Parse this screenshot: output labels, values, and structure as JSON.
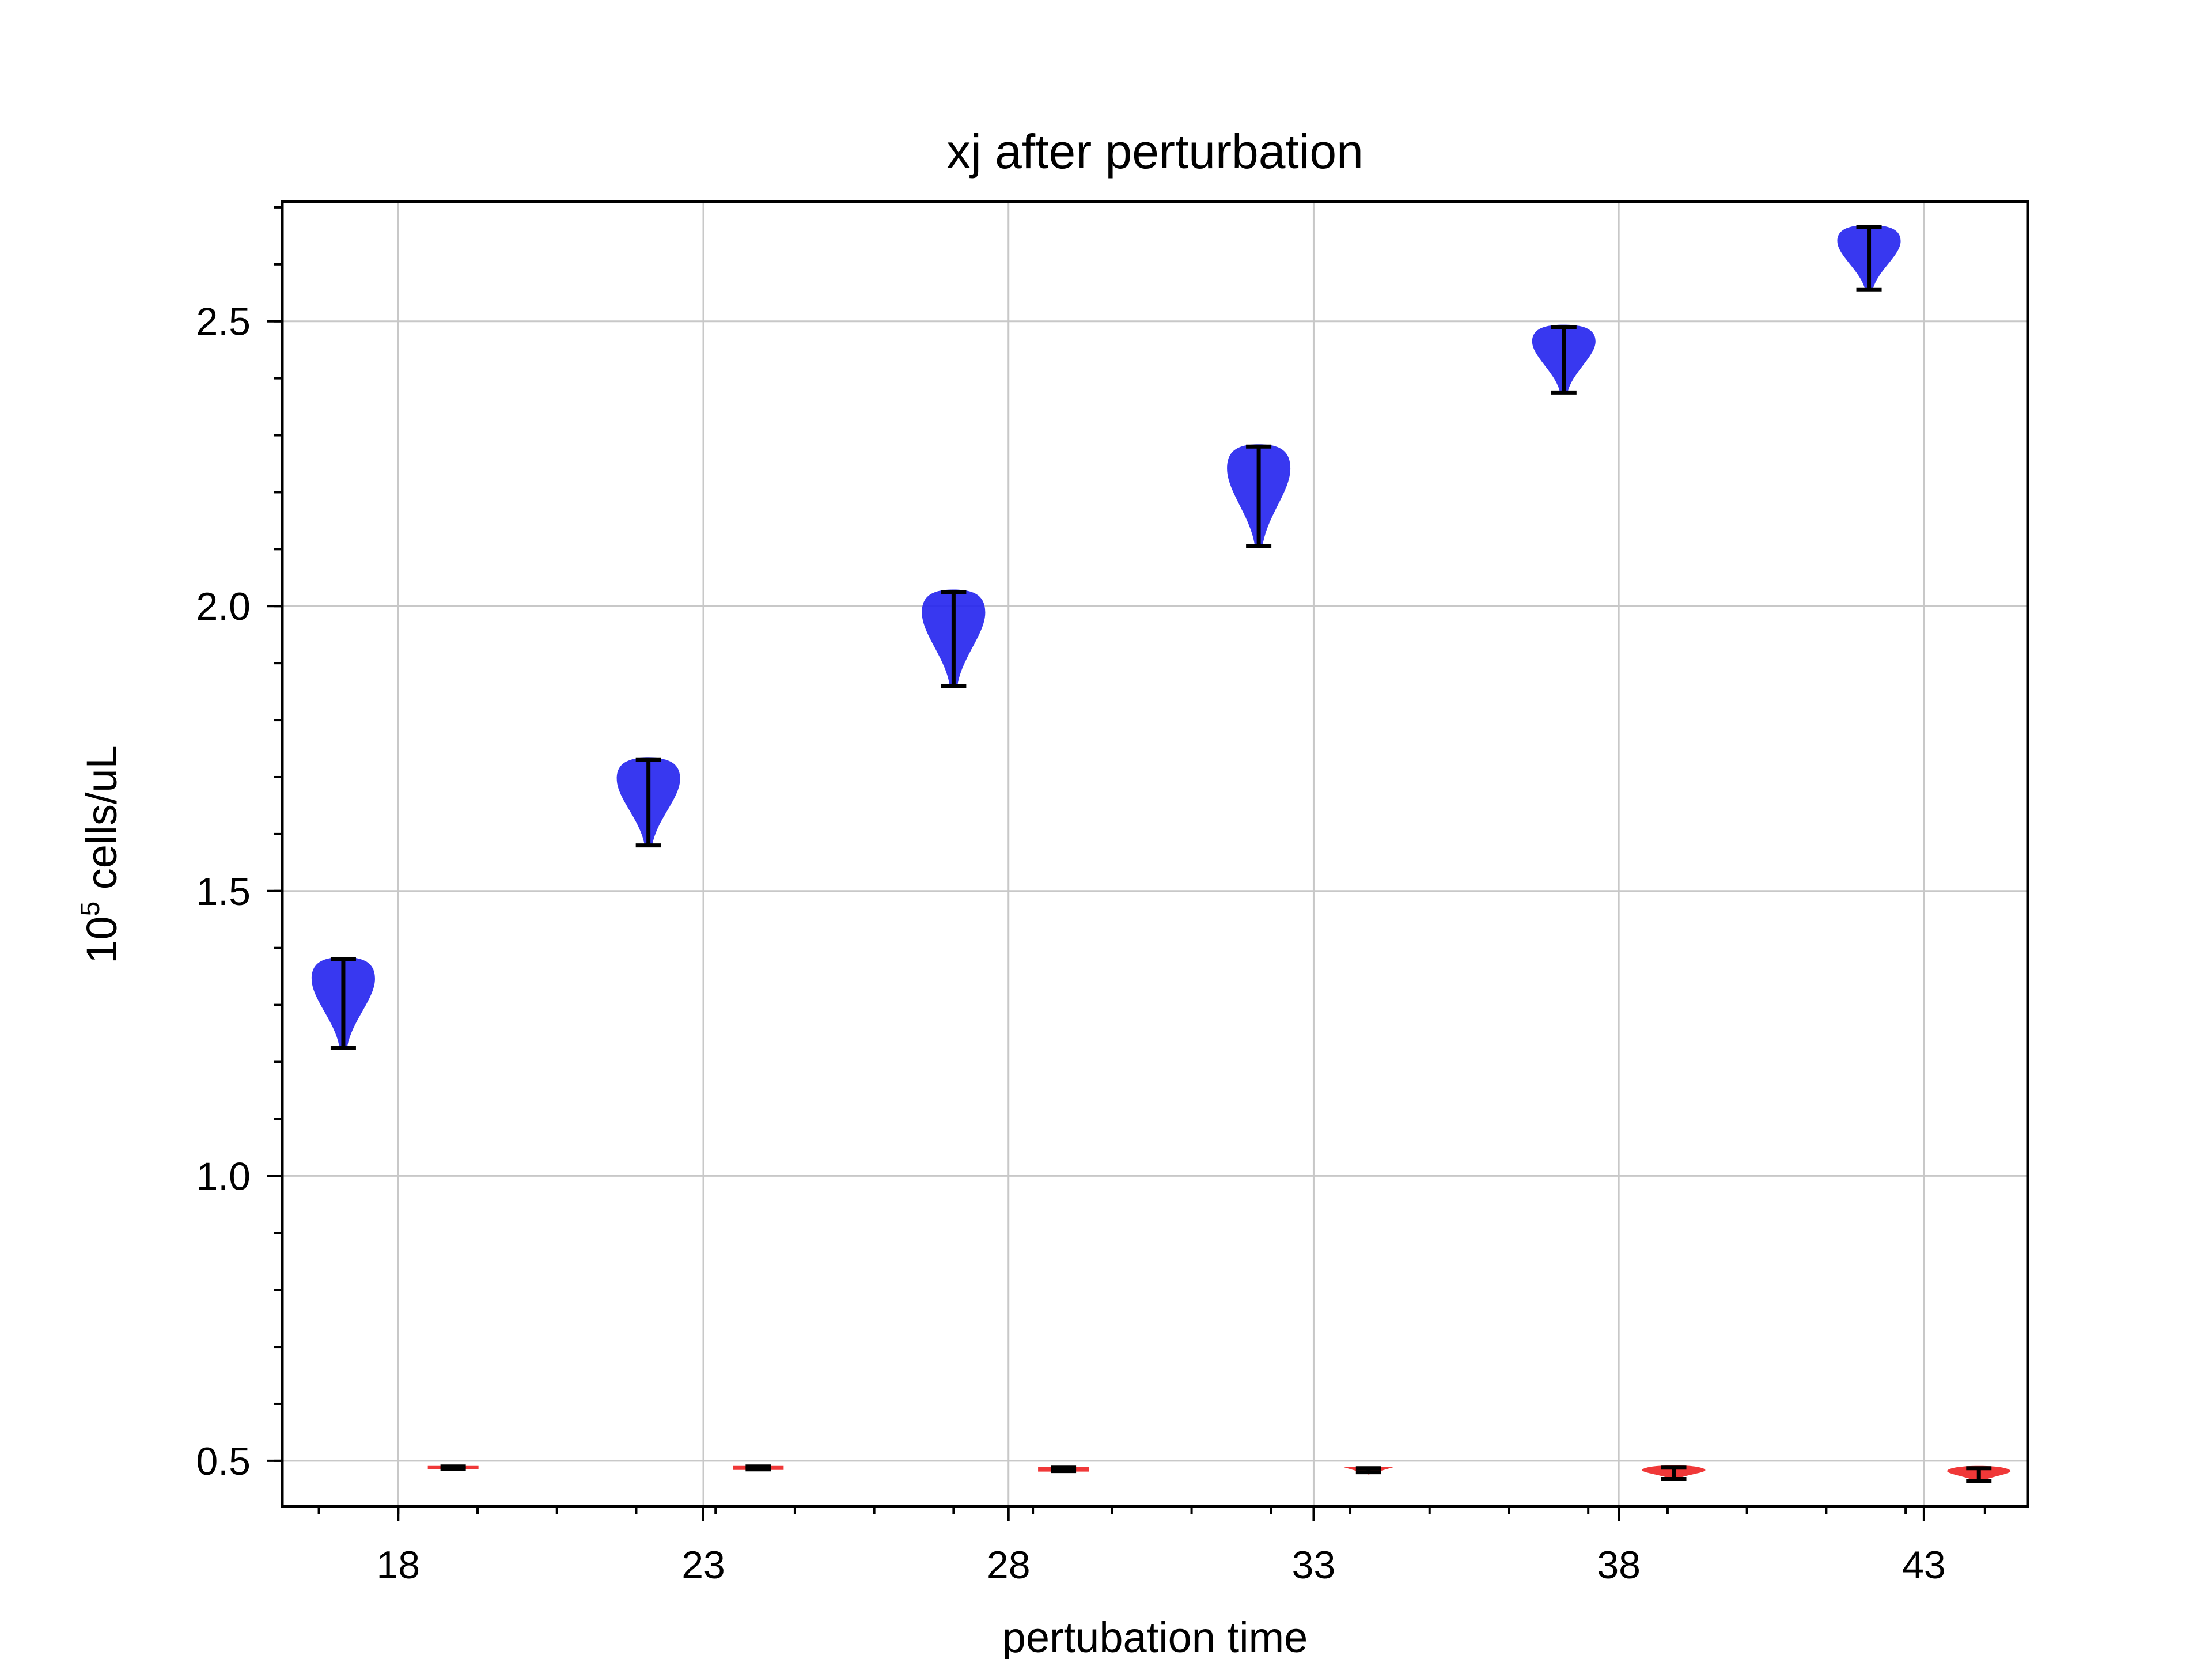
{
  "chart_data": {
    "type": "violin",
    "title": "xj after perturbation",
    "xlabel": "pertubation time",
    "ylabel_base": "10",
    "ylabel_exp": "5",
    "ylabel_rest": " cells/uL",
    "xlim": [
      16.1,
      44.7
    ],
    "ylim": [
      0.42,
      2.71
    ],
    "xticks": [
      18,
      23,
      28,
      33,
      38,
      43
    ],
    "xtick_labels": [
      "18",
      "23",
      "28",
      "33",
      "38",
      "43"
    ],
    "yticks": [
      0.5,
      1.0,
      1.5,
      2.0,
      2.5
    ],
    "ytick_labels": [
      "0.5",
      "1.0",
      "1.5",
      "2.0",
      "2.5"
    ],
    "grid": true,
    "series": [
      {
        "color": "#2222ee",
        "violins": [
          {
            "x": 17.1,
            "min": 1.225,
            "max": 1.38
          },
          {
            "x": 22.1,
            "min": 1.58,
            "max": 1.73
          },
          {
            "x": 27.1,
            "min": 1.86,
            "max": 2.025
          },
          {
            "x": 32.1,
            "min": 2.105,
            "max": 2.28
          },
          {
            "x": 37.1,
            "min": 2.375,
            "max": 2.49
          },
          {
            "x": 42.1,
            "min": 2.555,
            "max": 2.665
          }
        ]
      },
      {
        "color": "#ee2222",
        "violins": [
          {
            "x": 18.9,
            "min": 0.486,
            "max": 0.49
          },
          {
            "x": 23.9,
            "min": 0.485,
            "max": 0.49
          },
          {
            "x": 28.9,
            "min": 0.482,
            "max": 0.488
          },
          {
            "x": 33.9,
            "min": 0.48,
            "max": 0.487
          },
          {
            "x": 38.9,
            "min": 0.468,
            "max": 0.488
          },
          {
            "x": 43.9,
            "min": 0.464,
            "max": 0.487
          }
        ]
      }
    ]
  }
}
